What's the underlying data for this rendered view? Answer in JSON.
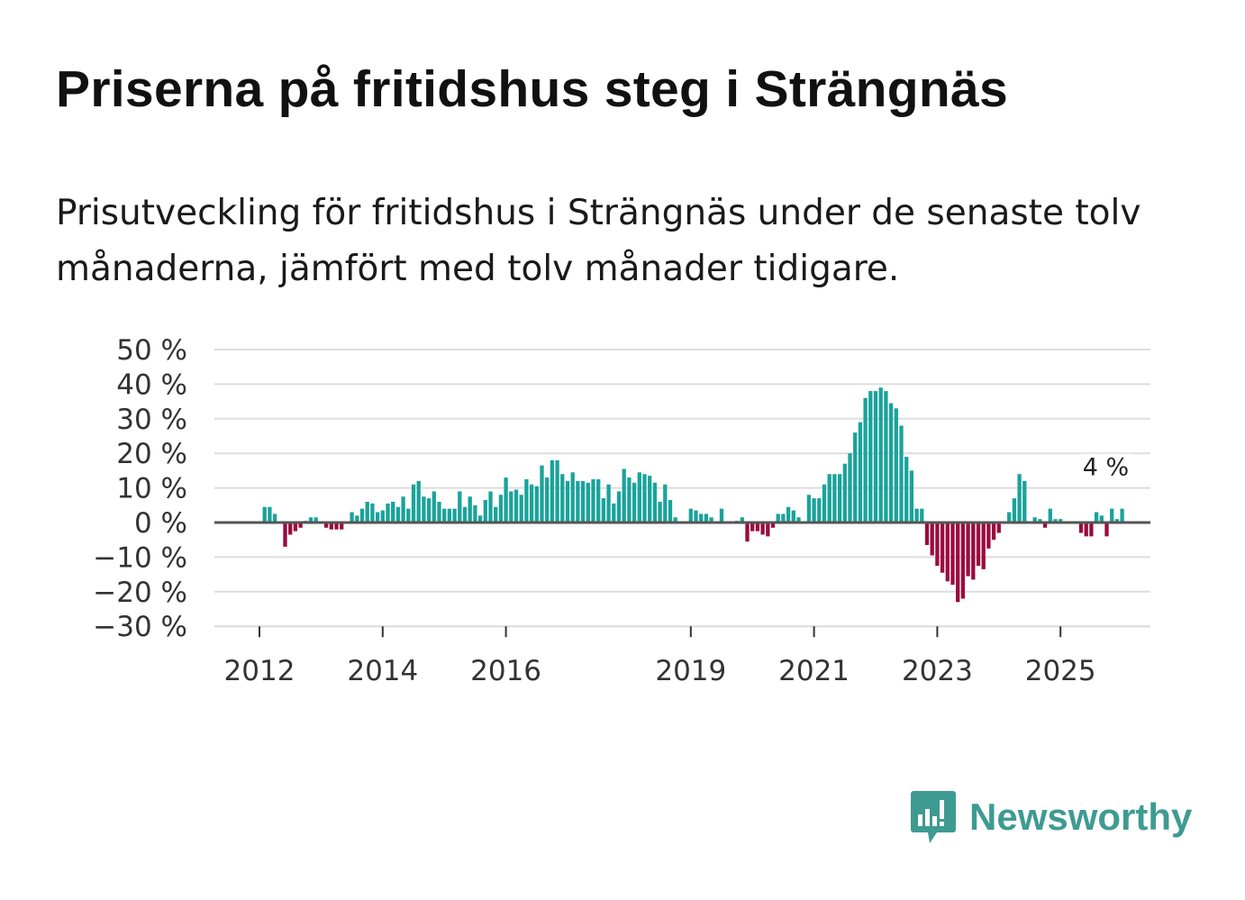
{
  "title": "Priserna på fritidshus steg i Strängnäs",
  "subtitle": "Prisutveckling för fritidshus i Strängnäs under de senaste tolv månaderna, jämfört med tolv månader tidigare.",
  "brand": {
    "name": "Newsworthy",
    "color": "#3e9b92"
  },
  "colors": {
    "positive": "#1aa39a",
    "negative": "#9b0b3f",
    "zero_line": "#555555",
    "grid": "#dddddd"
  },
  "chart_data": {
    "type": "bar",
    "title": "Priserna på fritidshus steg i Strängnäs",
    "xlabel": "",
    "ylabel": "",
    "ylim": [
      -30,
      50
    ],
    "yticks": [
      50,
      40,
      30,
      20,
      10,
      0,
      -10,
      -20,
      -30
    ],
    "ytick_labels": [
      "50 %",
      "40 %",
      "30 %",
      "20 %",
      "10 %",
      "0 %",
      "−10 %",
      "−20 %",
      "−30 %"
    ],
    "x_start": "2012-01",
    "xticks": [
      {
        "label": "2012",
        "month_index": 0
      },
      {
        "label": "2014",
        "month_index": 24
      },
      {
        "label": "2016",
        "month_index": 48
      },
      {
        "label": "2019",
        "month_index": 84
      },
      {
        "label": "2021",
        "month_index": 108
      },
      {
        "label": "2023",
        "month_index": 132
      },
      {
        "label": "2025",
        "month_index": 156
      }
    ],
    "annotation": {
      "text": "4 %",
      "month_index": 165,
      "value": 4
    },
    "values": [
      null,
      4.5,
      4.5,
      2.5,
      null,
      -7,
      -3.5,
      -2.5,
      -1.5,
      0.5,
      1.5,
      1.5,
      null,
      -1.5,
      -2,
      -2,
      -2,
      null,
      3,
      2,
      4,
      6,
      5.5,
      3,
      3.5,
      5.5,
      6,
      4.5,
      7.5,
      4,
      11,
      12,
      7.5,
      7,
      9,
      6,
      4,
      4,
      4,
      9,
      4.5,
      7.5,
      5,
      2,
      6.5,
      9,
      4.5,
      8,
      13,
      9,
      9.5,
      8,
      12.5,
      11,
      10.5,
      16.5,
      13,
      18,
      18,
      14,
      12,
      14.5,
      12,
      12,
      11.5,
      12.5,
      12.5,
      7,
      11,
      5.5,
      9,
      15.5,
      13,
      11.5,
      14.5,
      14,
      13.5,
      11.5,
      6,
      11,
      6.5,
      1.5,
      null,
      null,
      4,
      3.5,
      2.5,
      2.5,
      1.5,
      null,
      4,
      null,
      null,
      0.5,
      1.5,
      -5.5,
      -2.5,
      -2.5,
      -3.5,
      -4,
      -1.5,
      2.5,
      2.5,
      4.5,
      3.5,
      1.5,
      null,
      8,
      7,
      7,
      11,
      14,
      14,
      14,
      17,
      20,
      26,
      29,
      36,
      38,
      38,
      39,
      38,
      34.5,
      33,
      28,
      19,
      15,
      4,
      4,
      -6.5,
      -9.5,
      -12.5,
      -14.5,
      -17,
      -18,
      -23,
      -22,
      -15.5,
      -16.5,
      -12.5,
      -13.5,
      -7.5,
      -5,
      -3,
      null,
      3,
      7,
      14,
      12,
      null,
      1.5,
      1,
      -1.5,
      4,
      1,
      1,
      null,
      null,
      null,
      -3,
      -4,
      -4,
      3,
      2,
      -4,
      4,
      1,
      4
    ]
  }
}
